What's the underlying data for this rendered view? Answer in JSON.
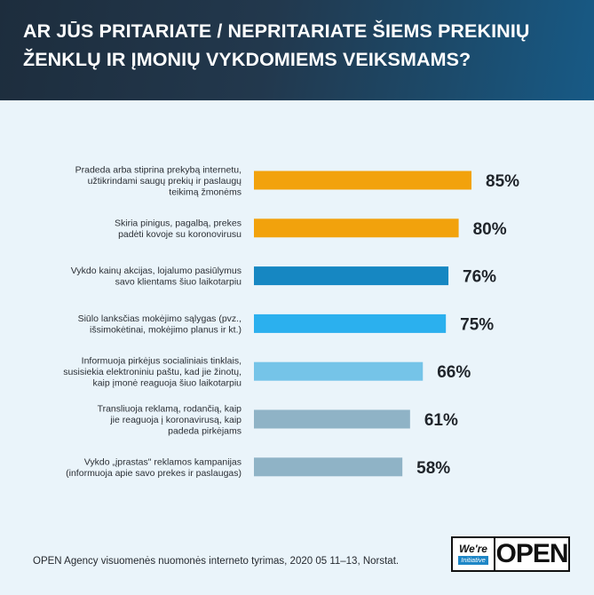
{
  "header": {
    "title": "AR JŪS PRITARIATE / NEPRITARIATE ŠIEMS PREKINIŲ ŽENKLŲ IR ĮMONIŲ VYKDOMIEMS VEIKSMAMS?"
  },
  "chart_data": {
    "type": "bar",
    "orientation": "horizontal",
    "title": "AR JŪS PRITARIATE / NEPRITARIATE ŠIEMS PREKINIŲ ŽENKLŲ IR ĮMONIŲ VYKDOMIEMS VEIKSMAMS?",
    "unit": "%",
    "xlim": [
      0,
      100
    ],
    "grid": false,
    "categories": [
      [
        "Pradeda arba stiprina prekybą internetu,",
        "užtikrindami saugų prekių ir paslaugų",
        "teikimą žmonėms"
      ],
      [
        "Skiria pinigus, pagalbą, prekes",
        "padėti kovoje su koronovirusu"
      ],
      [
        "Vykdo kainų akcijas, lojalumo pasiūlymus",
        "savo klientams šiuo laikotarpiu"
      ],
      [
        "Siūlo lanksčias mokėjimo sąlygas (pvz.,",
        "išsimokėtinai, mokėjimo planus ir kt.)"
      ],
      [
        "Informuoja pirkėjus socialiniais tinklais,",
        "susisiekia elektroniniu paštu, kad jie žinotų,",
        "kaip įmonė reaguoja šiuo laikotarpiu"
      ],
      [
        "Transliuoja reklamą, rodančią, kaip",
        "jie reaguoja į koronavirusą, kaip",
        "padeda pirkėjams"
      ],
      [
        "Vykdo „įprastas\" reklamos kampanijas",
        "(informuoja apie savo prekes ir paslaugas)"
      ]
    ],
    "values": [
      85,
      80,
      76,
      75,
      66,
      61,
      58
    ],
    "value_labels": [
      "85%",
      "80%",
      "76%",
      "75%",
      "66%",
      "61%",
      "58%"
    ],
    "colors": [
      "#f2a20c",
      "#f2a20c",
      "#1687c2",
      "#2bb0ee",
      "#75c4e8",
      "#8fb3c6",
      "#8fb3c6"
    ]
  },
  "footer": {
    "source": "OPEN Agency visuomenės nuomonės interneto tyrimas, 2020 05 11–13, Norstat."
  },
  "logo": {
    "were": "We're",
    "initiative": "Initiative",
    "open": "OPEN"
  }
}
